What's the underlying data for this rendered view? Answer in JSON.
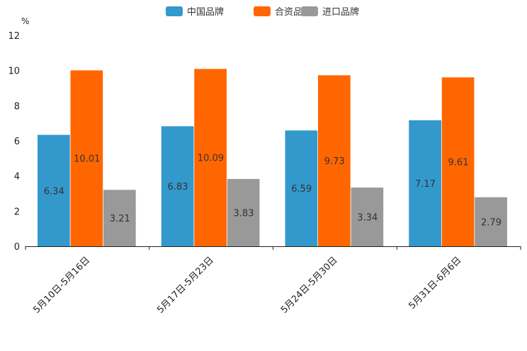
{
  "chart_data": {
    "type": "bar",
    "title": "",
    "unit": "%",
    "xlabel": "",
    "ylabel": "",
    "ylim": [
      0,
      12
    ],
    "yticks": [
      0,
      2,
      4,
      6,
      8,
      10,
      12
    ],
    "grid": false,
    "legend_position": "top-center",
    "categories": [
      "5月10日-5月16日",
      "5月17日-5月23日",
      "5月24日-5月30日",
      "5月31日-6月6日"
    ],
    "series": [
      {
        "name": "中国品牌",
        "color": "#3399cc",
        "values": [
          6.34,
          6.83,
          6.59,
          7.17
        ]
      },
      {
        "name": "合资品牌",
        "color": "#ff6600",
        "values": [
          10.01,
          10.09,
          9.73,
          9.61
        ]
      },
      {
        "name": "进口品牌",
        "color": "#999999",
        "values": [
          3.21,
          3.83,
          3.34,
          2.79
        ]
      }
    ]
  }
}
